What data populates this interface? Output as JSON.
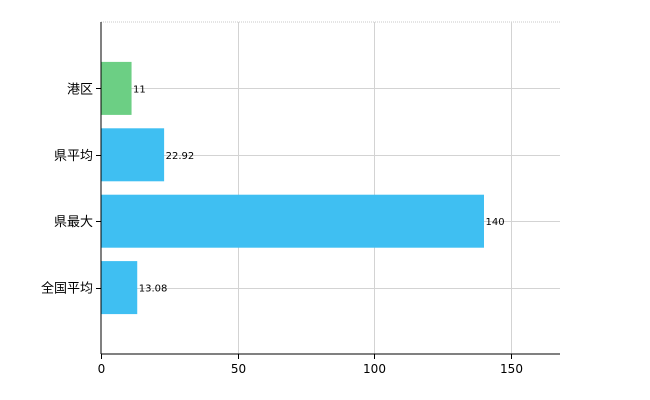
{
  "chart_data": {
    "type": "bar",
    "orientation": "horizontal",
    "categories": [
      "港区",
      "県平均",
      "県最大",
      "全国平均"
    ],
    "values": [
      11,
      22.92,
      140,
      13.08
    ],
    "data_labels": [
      "11",
      "22.92",
      "140",
      "13.08"
    ],
    "bar_colors": [
      "#6ccf84",
      "#3fbff2",
      "#3fbff2",
      "#3fbff2"
    ],
    "xlim": [
      0,
      168
    ],
    "xticks": [
      0,
      50,
      100,
      150
    ],
    "xtick_labels": [
      "0",
      "50",
      "100",
      "150"
    ],
    "grid": true,
    "legend": "none",
    "title": "",
    "xlabel": "",
    "ylabel": ""
  }
}
